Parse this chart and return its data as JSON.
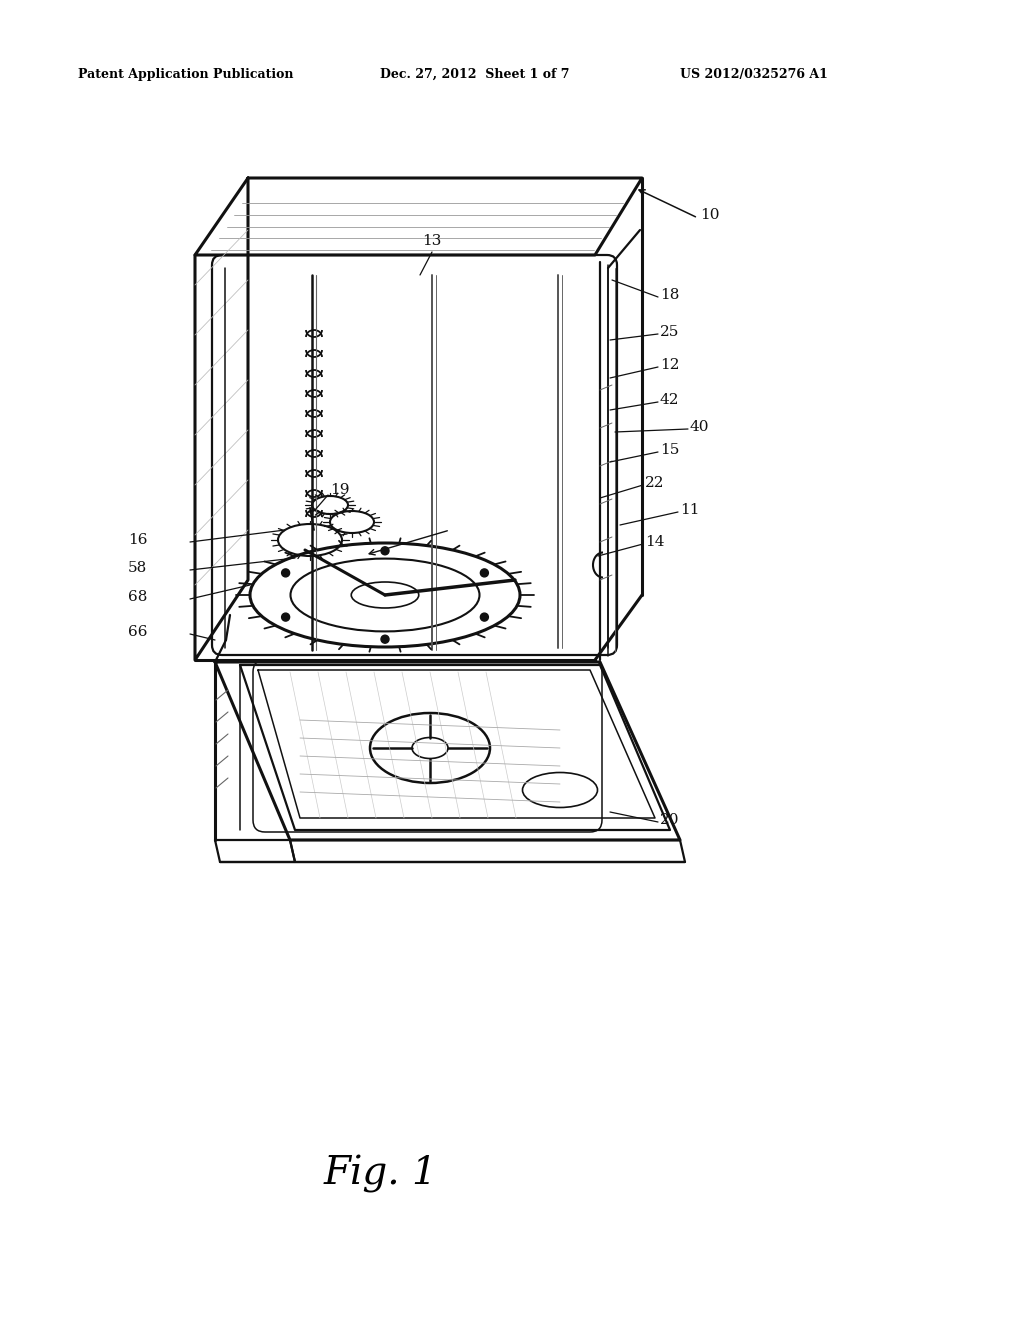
{
  "bg_color": "#ffffff",
  "header_left": "Patent Application Publication",
  "header_mid": "Dec. 27, 2012  Sheet 1 of 7",
  "header_right": "US 2012/0325276 A1",
  "fig_label": "Fig. 1",
  "header_fontsize": 9,
  "fig_fontsize": 28,
  "label_fontsize": 11,
  "dark": "#111111",
  "gray": "#666666",
  "light_gray": "#aaaaaa"
}
